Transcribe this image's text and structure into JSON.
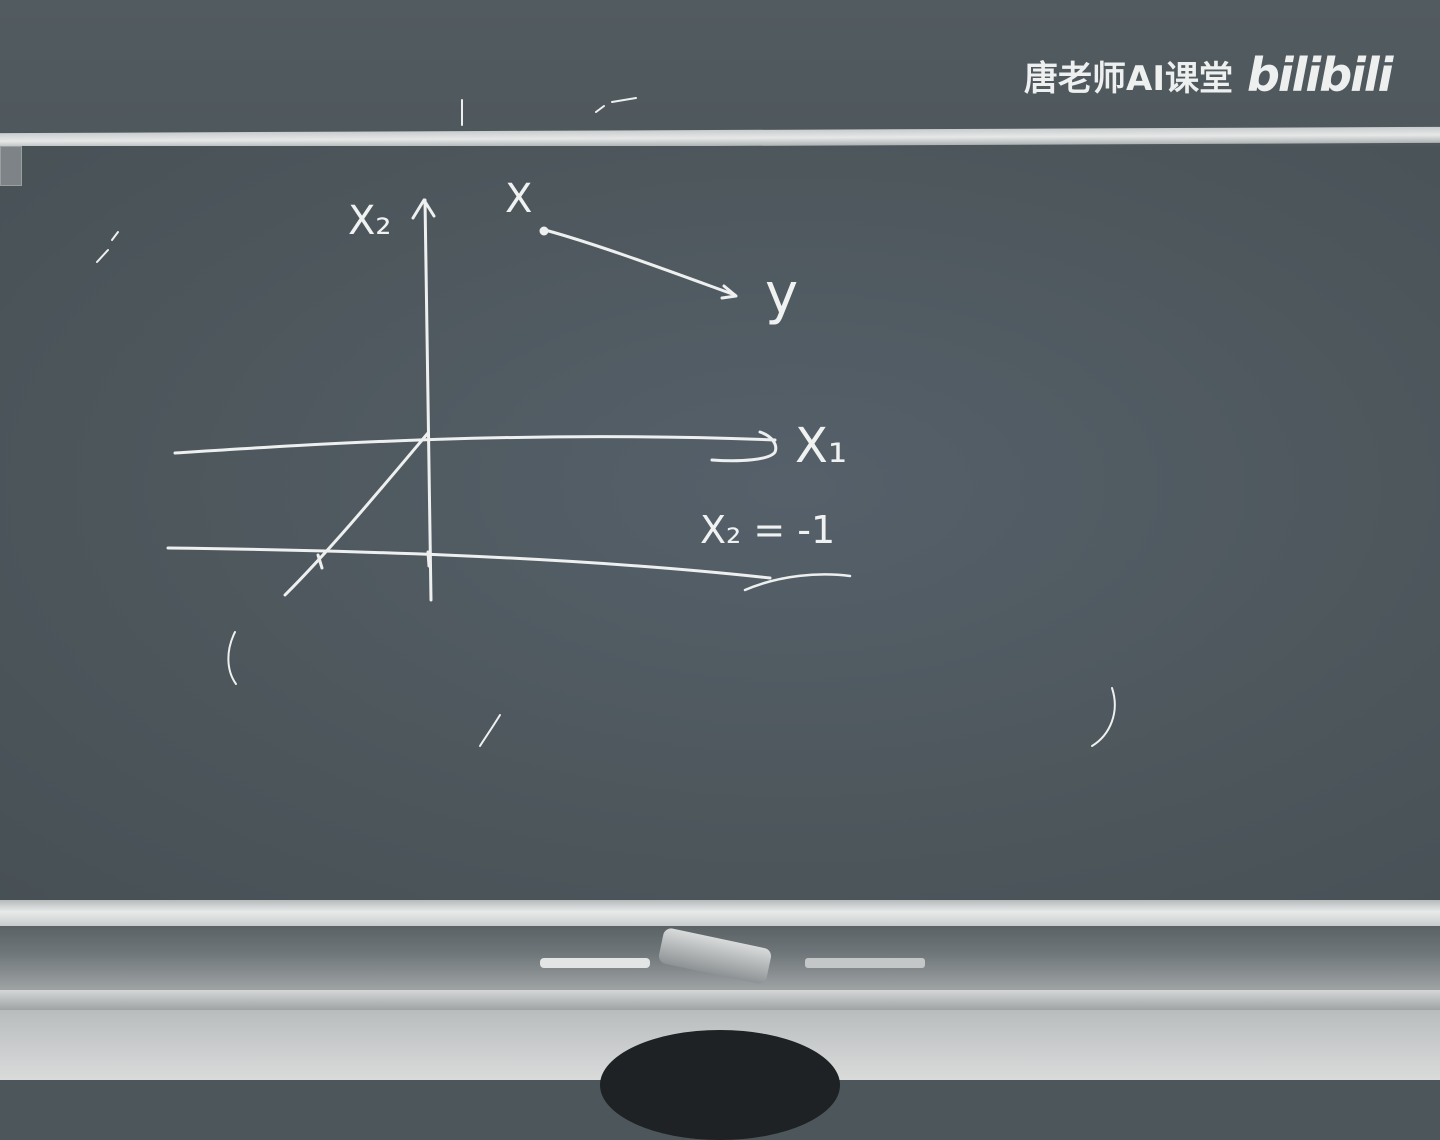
{
  "watermark": {
    "channel_name": "唐老师AI课堂",
    "logo_text": "bilibili"
  },
  "board": {
    "vertical_axis_label": "X₂",
    "horizontal_axis_label": "X₁",
    "line_label": "X₂ = -1",
    "point_label": "X",
    "mapped_label": "y"
  },
  "colors": {
    "chalkboard": "#4d565b",
    "chalk": "#f2f3f3",
    "rail": "#e6e8e8"
  }
}
